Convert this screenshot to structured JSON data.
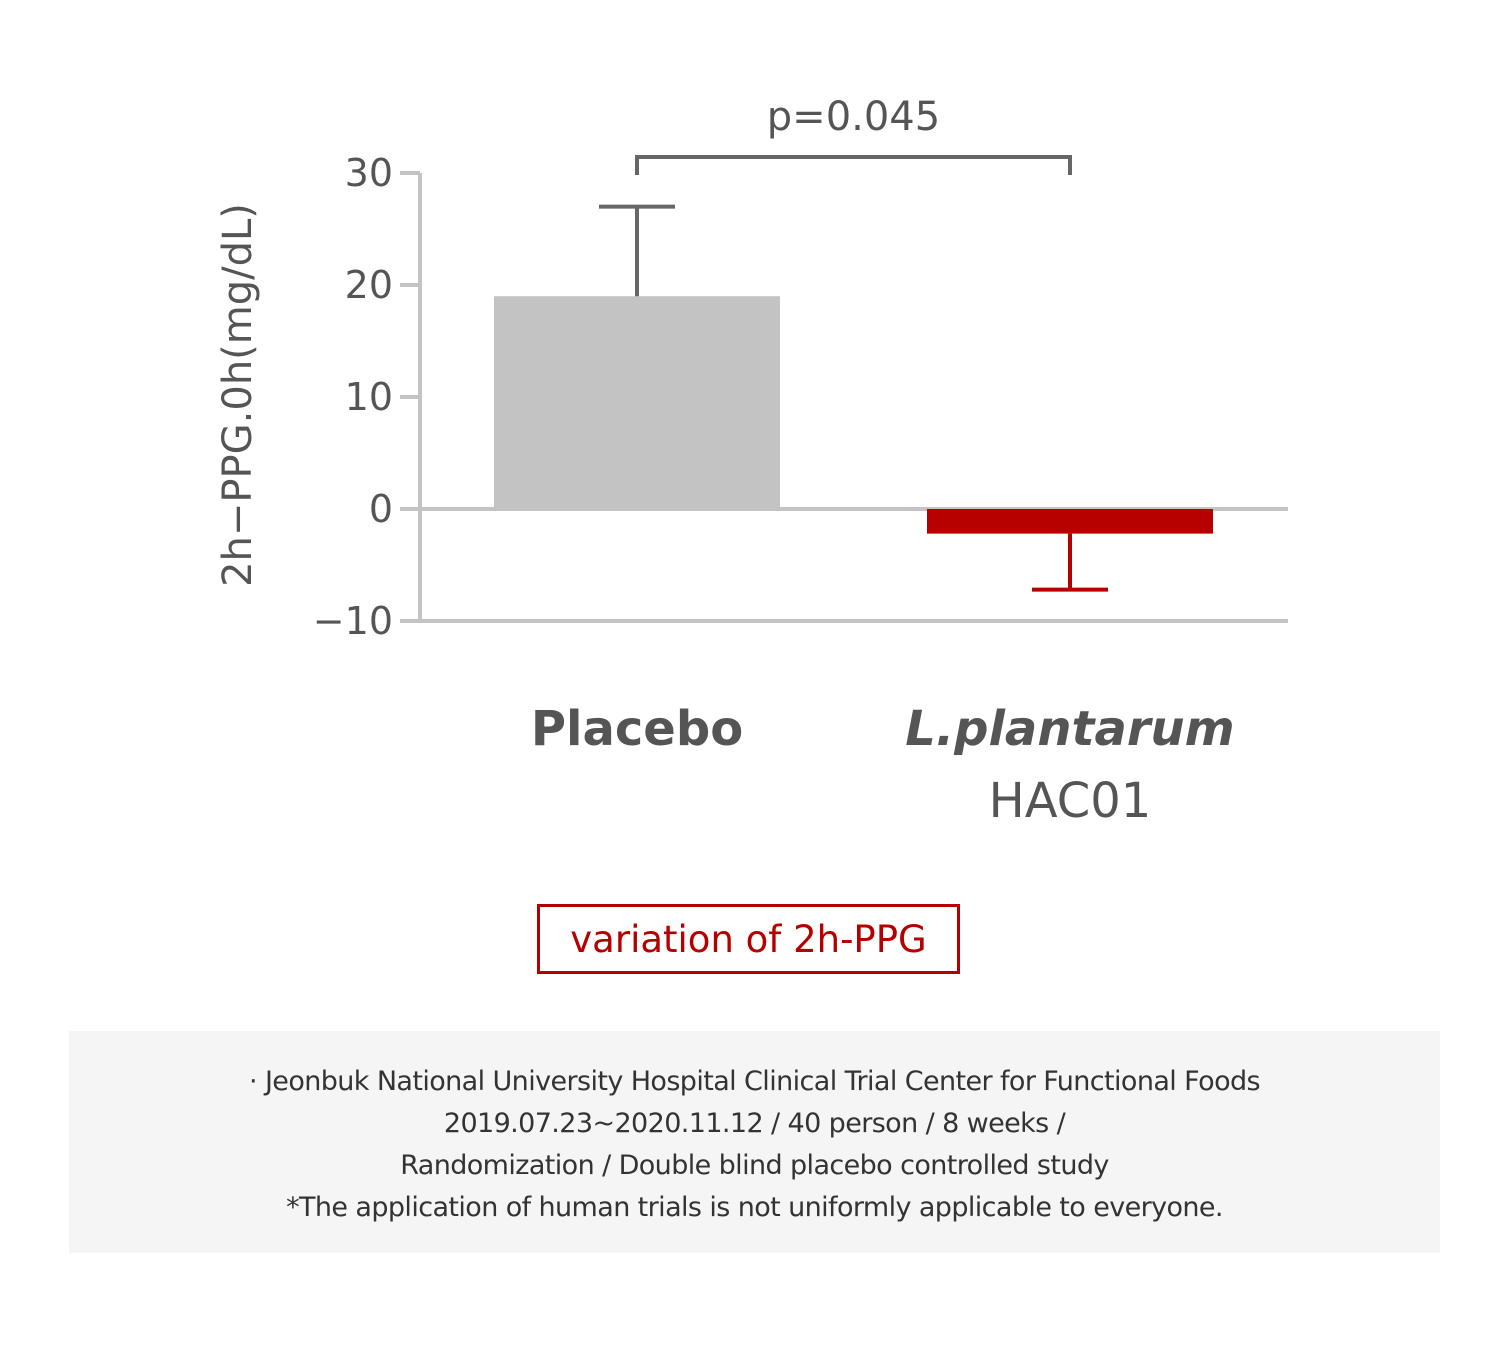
{
  "chart_data": {
    "type": "bar",
    "title": "",
    "ylabel": "2h−PPG.0h(mg/dL)",
    "xlabel": "",
    "ylim": [
      -10,
      30
    ],
    "yticks": [
      30,
      20,
      10,
      0,
      -10
    ],
    "ytick_labels": [
      "30",
      "20",
      "10",
      "0",
      "−10"
    ],
    "categories": [
      "Placebo",
      "L.plantarum HAC01"
    ],
    "category_labels": [
      {
        "lines": [
          "Placebo"
        ],
        "italic_first_line": false
      },
      {
        "lines": [
          "L.plantarum",
          "HAC01"
        ],
        "italic_first_line": true
      }
    ],
    "values": [
      19,
      -2.2
    ],
    "error": [
      8,
      5
    ],
    "error_direction": [
      "up",
      "down"
    ],
    "colors": [
      "#c3c3c3",
      "#b70000"
    ],
    "annotation": {
      "text": "p=0.045",
      "between": [
        0,
        1
      ]
    },
    "grid": false,
    "legend": "none"
  },
  "caption": "variation of 2h-PPG",
  "notes": [
    "· Jeonbuk National University Hospital Clinical Trial Center for Functional Foods",
    "2019.07.23~2020.11.12 / 40 person / 8 weeks /",
    "Randomization / Double blind placebo controlled study",
    "*The application of human trials is not uniformly applicable to everyone."
  ],
  "colors": {
    "accent": "#b50000",
    "axis": "#c3c3c3",
    "text": "#555555",
    "notes_bg": "#f5f5f5"
  }
}
